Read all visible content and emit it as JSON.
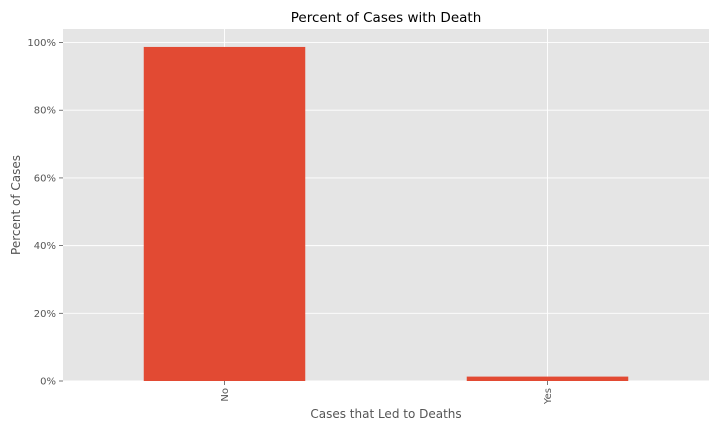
{
  "chart_data": {
    "type": "bar",
    "title": "Percent of Cases with Death",
    "xlabel": "Cases that Led to Deaths",
    "ylabel": "Percent of Cases",
    "categories": [
      "No",
      "Yes"
    ],
    "values": [
      98.7,
      1.3
    ],
    "ylim": [
      0,
      104
    ],
    "yticks": [
      0,
      20,
      40,
      60,
      80,
      100
    ],
    "ytick_labels": [
      "0%",
      "20%",
      "40%",
      "60%",
      "80%",
      "100%"
    ],
    "grid": true,
    "legend": "none",
    "colors": {
      "bar": "#e24a33",
      "plot_background": "#e5e5e5",
      "grid": "#ffffff",
      "figure_background": "#ffffff"
    }
  }
}
